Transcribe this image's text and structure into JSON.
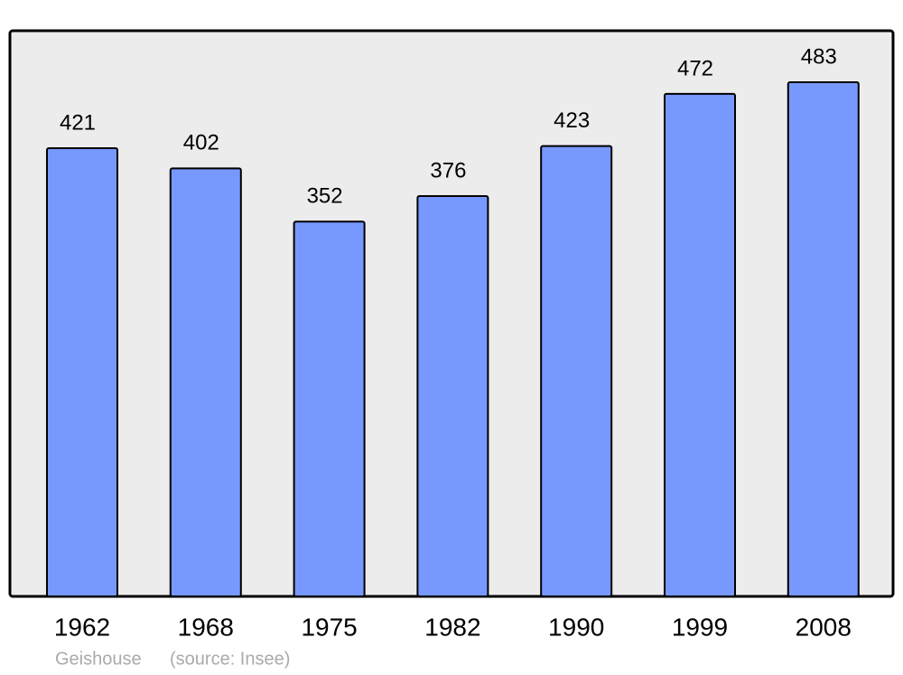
{
  "chart_data": {
    "type": "bar",
    "title": "Geishouse",
    "source": "(source: Insee)",
    "categories": [
      "1962",
      "1968",
      "1975",
      "1982",
      "1990",
      "1999",
      "2008"
    ],
    "values": [
      421,
      402,
      352,
      376,
      423,
      472,
      483
    ],
    "color": "#7799ff"
  }
}
